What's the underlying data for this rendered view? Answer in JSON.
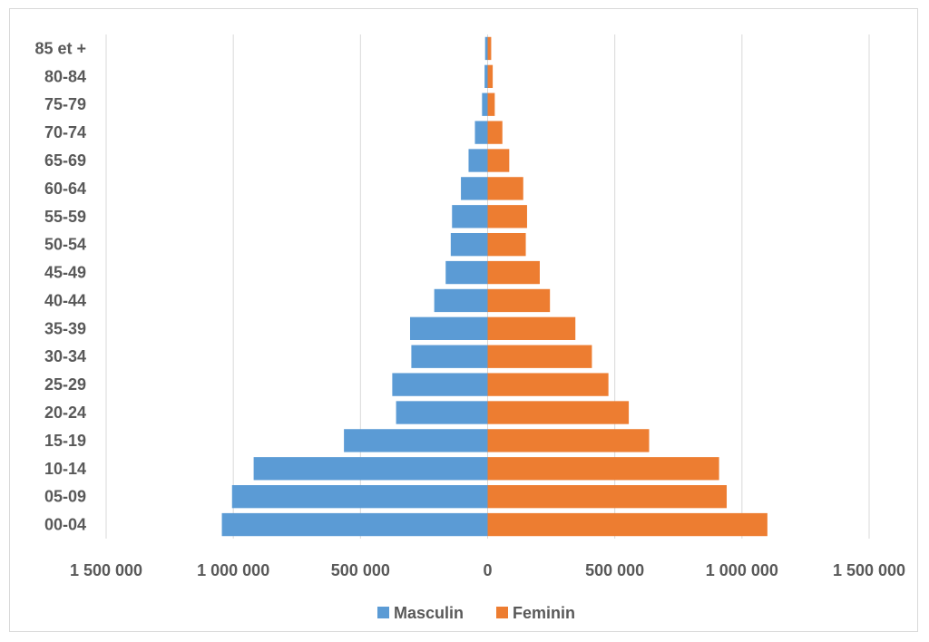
{
  "chart_data": {
    "type": "bar",
    "orientation": "horizontal-population-pyramid",
    "categories": [
      "00-04",
      "05-09",
      "10-14",
      "15-19",
      "20-24",
      "25-29",
      "30-34",
      "35-39",
      "40-44",
      "45-49",
      "50-54",
      "55-59",
      "60-64",
      "65-69",
      "70-74",
      "75-79",
      "80-84",
      "85 et +"
    ],
    "series": [
      {
        "name": "Masculin",
        "color": "#5b9bd5",
        "values": [
          1045000,
          1005000,
          920000,
          565000,
          360000,
          375000,
          300000,
          305000,
          210000,
          165000,
          145000,
          140000,
          105000,
          75000,
          50000,
          22000,
          12000,
          10000
        ]
      },
      {
        "name": "Feminin",
        "color": "#ed7d31",
        "values": [
          1100000,
          940000,
          910000,
          635000,
          555000,
          475000,
          410000,
          345000,
          245000,
          205000,
          150000,
          155000,
          140000,
          85000,
          58000,
          28000,
          20000,
          14000
        ]
      }
    ],
    "x_range": [
      -1500000,
      1500000
    ],
    "x_ticks": [
      -1500000,
      -1000000,
      -500000,
      0,
      500000,
      1000000,
      1500000
    ],
    "x_tick_labels": [
      "1 500 000",
      "1 000 000",
      "500 000",
      "0",
      "500 000",
      "1 000 000",
      "1 500 000"
    ],
    "grid": "vertical",
    "legend_position": "bottom"
  },
  "legend": {
    "male_label": "Masculin",
    "female_label": "Feminin"
  }
}
